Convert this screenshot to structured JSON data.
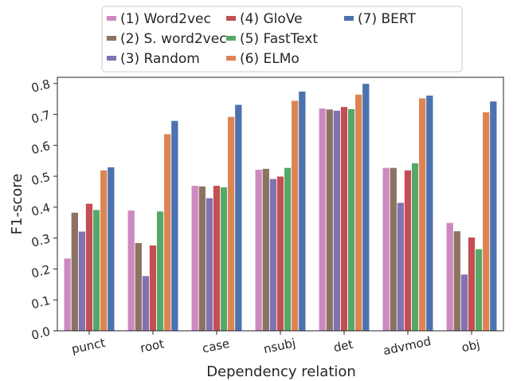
{
  "chart_data": {
    "type": "bar",
    "xlabel": "Dependency relation",
    "ylabel": "F1-score",
    "ylim": [
      0,
      0.82
    ],
    "yticks": [
      "0.0",
      "0.1",
      "0.2",
      "0.3",
      "0.4",
      "0.5",
      "0.6",
      "0.7",
      "0.8"
    ],
    "categories": [
      "punct",
      "root",
      "case",
      "nsubj",
      "det",
      "advmod",
      "obj"
    ],
    "grid": false,
    "legend_position": "top",
    "series": [
      {
        "name": "(1) Word2vec",
        "color": "#cc8ac0",
        "values": [
          0.235,
          0.39,
          0.47,
          0.522,
          0.72,
          0.528,
          0.35
        ]
      },
      {
        "name": "(2) S. word2vec",
        "color": "#8c7361",
        "values": [
          0.383,
          0.285,
          0.468,
          0.525,
          0.717,
          0.528,
          0.323
        ]
      },
      {
        "name": "(3) Random",
        "color": "#8172b2",
        "values": [
          0.322,
          0.178,
          0.43,
          0.492,
          0.713,
          0.415,
          0.183
        ]
      },
      {
        "name": "(4) GloVe",
        "color": "#c44e52",
        "values": [
          0.412,
          0.277,
          0.47,
          0.5,
          0.725,
          0.52,
          0.303
        ]
      },
      {
        "name": "(5) FastText",
        "color": "#55a868",
        "values": [
          0.392,
          0.387,
          0.465,
          0.528,
          0.718,
          0.543,
          0.265
        ]
      },
      {
        "name": "(6) ELMo",
        "color": "#dd8452",
        "values": [
          0.52,
          0.637,
          0.693,
          0.745,
          0.765,
          0.753,
          0.708
        ]
      },
      {
        "name": "(7) BERT",
        "color": "#4c72b0",
        "values": [
          0.53,
          0.68,
          0.732,
          0.775,
          0.8,
          0.762,
          0.743
        ]
      }
    ]
  }
}
